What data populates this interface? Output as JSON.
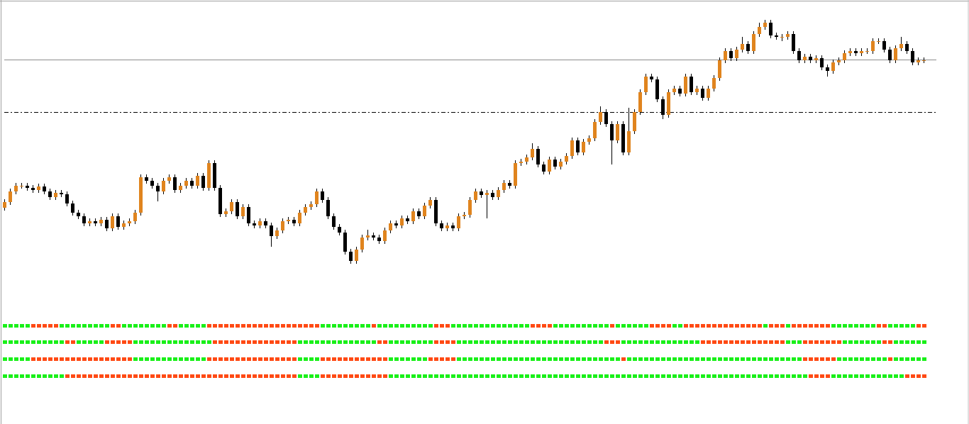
{
  "chart_data": {
    "type": "candlestick",
    "ylim": [
      0,
      598
    ],
    "color_up": "#e0841e",
    "color_down": "#000000",
    "open": [
      305,
      313,
      328,
      336,
      336,
      333,
      330,
      335,
      328,
      320,
      326,
      324,
      311,
      298,
      293,
      283,
      286,
      283,
      288,
      276,
      293,
      278,
      283,
      286,
      298,
      348,
      343,
      336,
      328,
      343,
      348,
      330,
      336,
      343,
      336,
      350,
      333,
      368,
      333,
      296,
      300,
      313,
      293,
      306,
      283,
      280,
      286,
      280,
      265,
      273,
      286,
      288,
      283,
      298,
      306,
      310,
      328,
      316,
      293,
      278,
      270,
      243,
      230,
      246,
      263,
      266,
      263,
      258,
      273,
      283,
      280,
      290,
      286,
      300,
      293,
      308,
      316,
      283,
      276,
      280,
      276,
      293,
      295,
      316,
      328,
      323,
      326,
      320,
      330,
      340,
      336,
      368,
      370,
      376,
      388,
      366,
      356,
      373,
      363,
      370,
      378,
      400,
      383,
      398,
      403,
      426,
      440,
      423,
      400,
      423,
      383,
      413,
      440,
      468,
      490,
      486,
      458,
      436,
      468,
      473,
      466,
      490,
      468,
      473,
      460,
      473,
      488,
      513,
      526,
      516,
      528,
      536,
      526,
      550,
      560,
      566,
      548,
      546,
      546,
      550,
      526,
      513,
      518,
      513,
      516,
      503,
      498,
      510,
      513,
      523,
      526,
      523,
      526,
      526,
      540,
      540,
      528,
      513,
      530,
      536,
      526,
      510,
      513
    ],
    "high": [
      317,
      332,
      340,
      340,
      340,
      337,
      339,
      339,
      332,
      330,
      330,
      328,
      315,
      302,
      297,
      290,
      290,
      292,
      292,
      297,
      297,
      287,
      290,
      302,
      352,
      352,
      347,
      340,
      347,
      352,
      352,
      340,
      347,
      347,
      354,
      354,
      372,
      372,
      337,
      304,
      317,
      317,
      310,
      310,
      287,
      290,
      290,
      284,
      277,
      290,
      292,
      292,
      302,
      310,
      314,
      332,
      332,
      320,
      297,
      282,
      274,
      247,
      250,
      267,
      274,
      270,
      267,
      277,
      287,
      287,
      294,
      294,
      304,
      304,
      312,
      320,
      320,
      287,
      284,
      284,
      297,
      299,
      320,
      332,
      332,
      330,
      330,
      334,
      344,
      344,
      372,
      374,
      380,
      396,
      392,
      370,
      377,
      377,
      374,
      382,
      404,
      404,
      402,
      407,
      430,
      448,
      444,
      427,
      427,
      427,
      446,
      444,
      472,
      494,
      494,
      490,
      462,
      472,
      477,
      477,
      494,
      494,
      477,
      477,
      477,
      492,
      517,
      530,
      530,
      532,
      546,
      540,
      554,
      566,
      570,
      570,
      552,
      550,
      554,
      554,
      530,
      522,
      522,
      520,
      520,
      507,
      514,
      517,
      527,
      530,
      530,
      530,
      530,
      544,
      544,
      544,
      532,
      534,
      546,
      540,
      530,
      517,
      517
    ],
    "low": [
      301,
      309,
      324,
      332,
      329,
      326,
      326,
      324,
      316,
      316,
      320,
      307,
      294,
      289,
      279,
      279,
      279,
      279,
      272,
      272,
      274,
      274,
      279,
      282,
      294,
      339,
      332,
      314,
      324,
      339,
      326,
      326,
      332,
      332,
      332,
      329,
      329,
      329,
      292,
      292,
      296,
      289,
      289,
      279,
      276,
      276,
      276,
      250,
      261,
      269,
      282,
      279,
      279,
      294,
      302,
      306,
      312,
      289,
      274,
      266,
      239,
      226,
      226,
      242,
      259,
      259,
      254,
      254,
      269,
      276,
      276,
      282,
      282,
      289,
      289,
      304,
      279,
      272,
      272,
      272,
      272,
      289,
      291,
      312,
      319,
      290,
      316,
      316,
      326,
      332,
      332,
      364,
      366,
      372,
      362,
      352,
      352,
      359,
      359,
      366,
      374,
      379,
      379,
      394,
      399,
      422,
      419,
      366,
      396,
      379,
      379,
      409,
      436,
      464,
      482,
      454,
      430,
      432,
      464,
      462,
      462,
      464,
      464,
      456,
      456,
      469,
      484,
      509,
      512,
      512,
      524,
      522,
      522,
      546,
      556,
      544,
      542,
      540,
      542,
      522,
      509,
      509,
      509,
      509,
      499,
      490,
      494,
      506,
      509,
      519,
      519,
      519,
      522,
      522,
      536,
      524,
      509,
      509,
      526,
      522,
      506,
      506,
      509
    ],
    "close": [
      313,
      328,
      336,
      336,
      333,
      330,
      335,
      328,
      320,
      326,
      324,
      311,
      298,
      293,
      283,
      286,
      283,
      288,
      276,
      293,
      278,
      283,
      286,
      298,
      348,
      343,
      336,
      328,
      343,
      348,
      330,
      336,
      343,
      336,
      350,
      333,
      368,
      333,
      296,
      300,
      313,
      293,
      306,
      283,
      280,
      286,
      280,
      265,
      273,
      286,
      288,
      283,
      298,
      306,
      310,
      328,
      316,
      293,
      278,
      270,
      243,
      230,
      246,
      263,
      266,
      263,
      258,
      273,
      283,
      280,
      290,
      286,
      300,
      293,
      308,
      316,
      283,
      276,
      280,
      276,
      293,
      295,
      316,
      328,
      323,
      326,
      320,
      330,
      340,
      336,
      368,
      370,
      376,
      388,
      366,
      356,
      373,
      363,
      370,
      378,
      400,
      383,
      398,
      403,
      426,
      440,
      423,
      400,
      423,
      383,
      413,
      440,
      468,
      490,
      486,
      458,
      436,
      468,
      473,
      466,
      490,
      468,
      473,
      460,
      473,
      488,
      513,
      526,
      516,
      528,
      536,
      526,
      550,
      560,
      566,
      548,
      546,
      546,
      550,
      526,
      513,
      518,
      513,
      516,
      503,
      498,
      510,
      513,
      523,
      526,
      523,
      526,
      526,
      540,
      540,
      528,
      513,
      530,
      536,
      526,
      510,
      513,
      513
    ],
    "levels": [
      {
        "value": 514,
        "style": "solid",
        "color": "#8c8c8c"
      },
      {
        "value": 440,
        "style": "dashdot",
        "color": "#000000"
      }
    ],
    "signal_colors": [
      "#ff4a14",
      "#19f019"
    ],
    "signals": [
      {
        "values": [
          1,
          1,
          1,
          1,
          1,
          0,
          0,
          0,
          0,
          0,
          1,
          1,
          1,
          1,
          1,
          1,
          1,
          1,
          1,
          0,
          0,
          1,
          1,
          1,
          1,
          1,
          1,
          1,
          1,
          0,
          0,
          1,
          1,
          1,
          1,
          1,
          0,
          0,
          0,
          0,
          0,
          0,
          0,
          0,
          0,
          0,
          0,
          0,
          0,
          0,
          0,
          0,
          0,
          0,
          0,
          0,
          1,
          1,
          1,
          1,
          1,
          1,
          1,
          1,
          1,
          0,
          1,
          1,
          1,
          1,
          1,
          1,
          1,
          1,
          1,
          1,
          0,
          0,
          0,
          1,
          1,
          1,
          1,
          1,
          1,
          1,
          1,
          1,
          1,
          1,
          1,
          1,
          1,
          0,
          0,
          0,
          0,
          1,
          1,
          1,
          1,
          1,
          1,
          1,
          1,
          1,
          1,
          0,
          1,
          1,
          1,
          1,
          1,
          1,
          0,
          0,
          0,
          0,
          1,
          1,
          0,
          0,
          0,
          0,
          0,
          0,
          0,
          0,
          0,
          0,
          0,
          0,
          0,
          0,
          1,
          0,
          0,
          0,
          1,
          0,
          0,
          0,
          0,
          0,
          0,
          0,
          1,
          1,
          1,
          1,
          1,
          1,
          1,
          1,
          0,
          0,
          1,
          1,
          1,
          1,
          1,
          0,
          0
        ]
      },
      {
        "values": [
          1,
          1,
          1,
          1,
          1,
          1,
          1,
          1,
          1,
          1,
          1,
          0,
          0,
          1,
          1,
          1,
          1,
          1,
          0,
          0,
          0,
          0,
          0,
          1,
          1,
          1,
          1,
          1,
          1,
          1,
          1,
          1,
          1,
          1,
          1,
          1,
          1,
          0,
          0,
          0,
          0,
          0,
          0,
          0,
          0,
          0,
          0,
          0,
          0,
          0,
          0,
          0,
          1,
          1,
          1,
          1,
          1,
          1,
          1,
          1,
          1,
          1,
          1,
          1,
          1,
          1,
          0,
          0,
          1,
          1,
          1,
          1,
          1,
          1,
          1,
          1,
          0,
          0,
          0,
          0,
          1,
          1,
          1,
          1,
          1,
          1,
          1,
          1,
          1,
          1,
          1,
          1,
          1,
          1,
          1,
          1,
          1,
          1,
          1,
          1,
          1,
          1,
          1,
          1,
          1,
          1,
          0,
          0,
          0,
          1,
          1,
          1,
          1,
          1,
          1,
          1,
          1,
          1,
          1,
          1,
          1,
          1,
          1,
          0,
          0,
          0,
          0,
          0,
          0,
          0,
          0,
          0,
          0,
          0,
          0,
          0,
          0,
          0,
          1,
          1,
          1,
          0,
          0,
          0,
          0,
          0,
          0,
          0,
          1,
          1,
          1,
          1,
          1,
          1,
          1,
          0,
          0,
          1,
          1,
          1,
          1,
          1,
          1
        ]
      },
      {
        "values": [
          1,
          1,
          1,
          1,
          1,
          0,
          0,
          0,
          0,
          0,
          0,
          0,
          0,
          0,
          0,
          0,
          0,
          0,
          0,
          0,
          0,
          0,
          0,
          1,
          1,
          1,
          1,
          1,
          1,
          1,
          1,
          1,
          1,
          1,
          1,
          1,
          0,
          0,
          0,
          0,
          0,
          0,
          0,
          0,
          0,
          0,
          0,
          0,
          0,
          0,
          0,
          0,
          1,
          1,
          1,
          1,
          0,
          0,
          0,
          0,
          0,
          0,
          0,
          0,
          0,
          0,
          0,
          0,
          1,
          1,
          1,
          1,
          1,
          1,
          1,
          0,
          0,
          0,
          0,
          0,
          1,
          1,
          1,
          1,
          1,
          1,
          1,
          1,
          1,
          1,
          1,
          1,
          1,
          1,
          1,
          1,
          1,
          1,
          1,
          1,
          1,
          1,
          1,
          1,
          1,
          1,
          1,
          1,
          1,
          0,
          1,
          1,
          1,
          1,
          1,
          1,
          1,
          1,
          1,
          1,
          1,
          1,
          1,
          1,
          1,
          1,
          1,
          1,
          1,
          1,
          1,
          1,
          1,
          1,
          1,
          1,
          1,
          1,
          1,
          1,
          1,
          0,
          0,
          0,
          0,
          0,
          0,
          1,
          1,
          1,
          1,
          1,
          1,
          1,
          1,
          1,
          0,
          1,
          1,
          1,
          1,
          1,
          1
        ]
      },
      {
        "values": [
          1,
          1,
          1,
          1,
          1,
          1,
          1,
          1,
          1,
          1,
          1,
          0,
          0,
          0,
          0,
          0,
          0,
          0,
          0,
          0,
          0,
          0,
          0,
          0,
          0,
          0,
          0,
          0,
          0,
          0,
          0,
          0,
          0,
          0,
          0,
          0,
          0,
          0,
          0,
          0,
          0,
          0,
          0,
          0,
          0,
          0,
          0,
          0,
          0,
          0,
          0,
          0,
          1,
          1,
          1,
          1,
          0,
          0,
          0,
          0,
          0,
          0,
          0,
          0,
          0,
          0,
          0,
          0,
          1,
          1,
          1,
          1,
          1,
          1,
          1,
          1,
          1,
          1,
          1,
          1,
          1,
          1,
          1,
          1,
          1,
          1,
          1,
          1,
          1,
          1,
          1,
          1,
          1,
          1,
          1,
          1,
          1,
          1,
          1,
          1,
          1,
          1,
          1,
          1,
          1,
          1,
          1,
          1,
          1,
          1,
          1,
          1,
          1,
          1,
          1,
          1,
          1,
          1,
          1,
          1,
          1,
          1,
          1,
          1,
          1,
          1,
          1,
          1,
          1,
          1,
          1,
          1,
          1,
          1,
          1,
          1,
          1,
          1,
          1,
          1,
          1,
          1,
          0,
          0,
          0,
          0,
          1,
          1,
          1,
          1,
          1,
          1,
          1,
          1,
          1,
          1,
          1,
          1,
          1,
          0,
          0,
          0,
          0
        ]
      }
    ]
  }
}
